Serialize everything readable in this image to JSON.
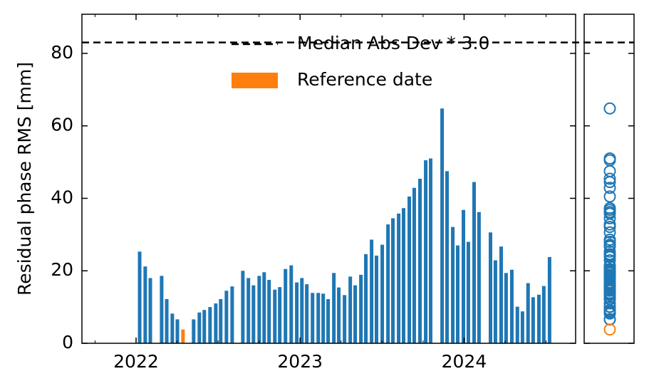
{
  "chart_data": {
    "type": "bar",
    "ylabel": "Residual phase RMS [mm]",
    "xlim": [
      2021.67,
      2024.68
    ],
    "xticks": [
      2022,
      2023,
      2024
    ],
    "ylim": [
      0,
      90.8
    ],
    "yticks": [
      0,
      20,
      40,
      60,
      80
    ],
    "threshold": {
      "value": 83,
      "label": "Median Abs Dev * 3.0"
    },
    "series": [
      {
        "color": "#1f77b4",
        "x": [
          2022.022,
          2022.056,
          2022.087,
          2022.156,
          2022.187,
          2022.221,
          2022.252,
          2022.351,
          2022.386,
          2022.416,
          2022.451,
          2022.486,
          2022.516,
          2022.551,
          2022.586,
          2022.651,
          2022.685,
          2022.716,
          2022.751,
          2022.781,
          2022.811,
          2022.846,
          2022.876,
          2022.911,
          2022.946,
          2022.98,
          2023.011,
          2023.041,
          2023.076,
          2023.111,
          2023.141,
          2023.171,
          2023.206,
          2023.236,
          2023.271,
          2023.306,
          2023.336,
          2023.371,
          2023.401,
          2023.436,
          2023.466,
          2023.501,
          2023.536,
          2023.566,
          2023.601,
          2023.631,
          2023.666,
          2023.696,
          2023.731,
          2023.766,
          2023.796,
          2023.866,
          2023.896,
          2023.931,
          2023.961,
          2023.996,
          2024.026,
          2024.061,
          2024.091,
          2024.161,
          2024.191,
          2024.226,
          2024.256,
          2024.291,
          2024.325,
          2024.356,
          2024.39,
          2024.421,
          2024.456,
          2024.486,
          2024.521
        ],
        "values": [
          25.3,
          21.2,
          18.0,
          18.6,
          12.2,
          8.2,
          6.6,
          6.6,
          8.5,
          9.2,
          10.0,
          11.0,
          12.2,
          14.5,
          15.7,
          20.0,
          18.0,
          16.0,
          18.6,
          19.6,
          17.5,
          14.8,
          15.5,
          20.5,
          21.5,
          16.8,
          18.0,
          16.3,
          13.9,
          13.9,
          13.7,
          12.2,
          19.4,
          15.4,
          13.3,
          18.4,
          16.0,
          18.9,
          24.6,
          28.6,
          24.2,
          27.2,
          32.8,
          34.5,
          35.8,
          37.3,
          40.5,
          42.9,
          45.4,
          50.5,
          51.0,
          64.8,
          47.5,
          32.1,
          27.0,
          36.8,
          28.0,
          44.5,
          36.2,
          30.6,
          22.9,
          26.7,
          19.4,
          20.3,
          10.1,
          8.8,
          16.6,
          12.7,
          13.4,
          15.8,
          23.8
        ]
      },
      {
        "name": "Reference date",
        "color": "#ff7f0e",
        "x": [
          2022.286
        ],
        "values": [
          3.8
        ]
      }
    ]
  }
}
